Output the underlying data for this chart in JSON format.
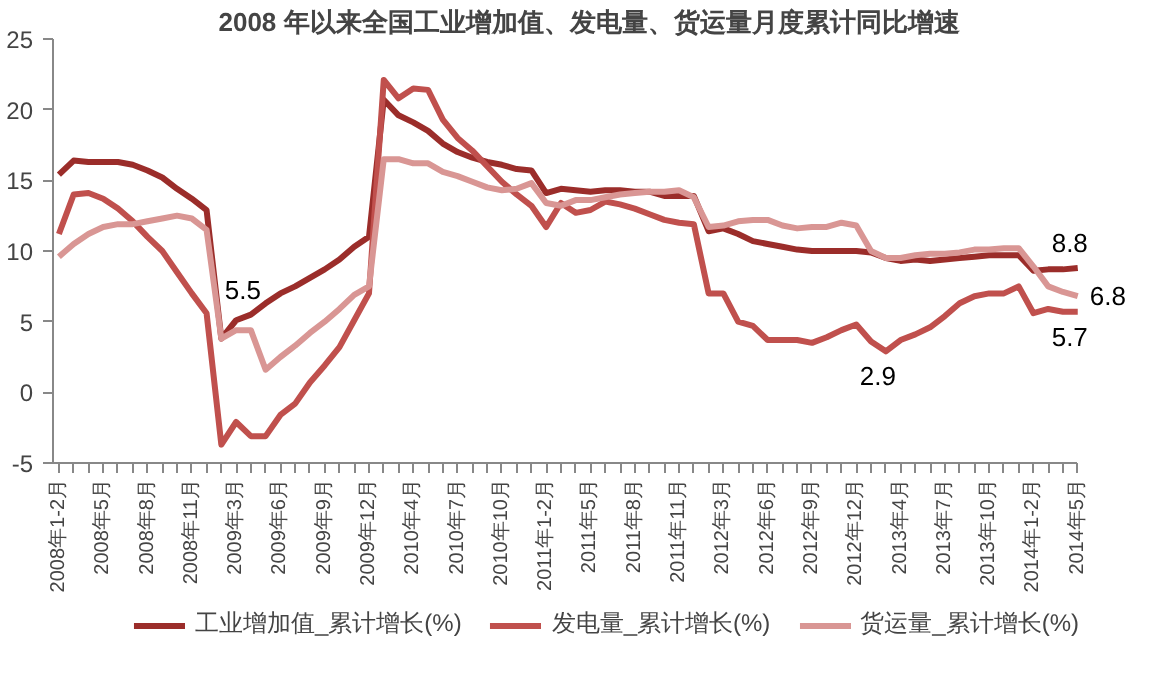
{
  "chart_data": {
    "type": "line",
    "title": "2008 年以来全国工业增加值、发电量、货运量月度累计同比增速",
    "categories": [
      "2008年1-2月",
      null,
      null,
      "2008年5月",
      null,
      null,
      "2008年8月",
      null,
      null,
      "2008年11月",
      null,
      null,
      "2009年3月",
      null,
      null,
      "2009年6月",
      null,
      null,
      "2009年9月",
      null,
      null,
      "2009年12月",
      null,
      null,
      "2010年4月",
      null,
      null,
      "2010年7月",
      null,
      null,
      "2010年10月",
      null,
      null,
      "2011年1-2月",
      null,
      null,
      "2011年5月",
      null,
      null,
      "2011年8月",
      null,
      null,
      "2011年11月",
      null,
      null,
      "2012年3月",
      null,
      null,
      "2012年6月",
      null,
      null,
      "2012年9月",
      null,
      null,
      "2012年12月",
      null,
      null,
      "2013年4月",
      null,
      null,
      "2013年7月",
      null,
      null,
      "2013年10月",
      null,
      null,
      "2014年1-2月",
      null,
      null,
      "2014年5月"
    ],
    "series": [
      {
        "name": "工业增加值_累计增长(%)",
        "color": "#9b2d2a",
        "values": [
          15.4,
          16.4,
          16.3,
          16.3,
          16.3,
          16.1,
          15.7,
          15.2,
          14.4,
          13.7,
          12.9,
          3.8,
          5.1,
          5.5,
          6.3,
          7.0,
          7.5,
          8.1,
          8.7,
          9.4,
          10.3,
          11.0,
          20.7,
          19.6,
          19.1,
          18.5,
          17.6,
          17.0,
          16.6,
          16.3,
          16.1,
          15.8,
          15.7,
          14.1,
          14.4,
          14.3,
          14.2,
          14.3,
          14.3,
          14.2,
          14.2,
          13.9,
          13.9,
          13.9,
          11.4,
          11.6,
          11.2,
          10.7,
          10.5,
          10.3,
          10.1,
          10.0,
          10.0,
          10.0,
          10.0,
          9.9,
          9.5,
          9.3,
          9.4,
          9.3,
          9.4,
          9.5,
          9.6,
          9.7,
          9.7,
          9.7,
          8.6,
          8.7,
          8.7,
          8.8
        ],
        "value_labels": [
          null,
          null,
          null,
          null,
          null,
          null,
          null,
          null,
          null,
          null,
          null,
          null,
          null,
          "5.5",
          null,
          null,
          null,
          null,
          null,
          null,
          null,
          null,
          null,
          null,
          null,
          null,
          null,
          null,
          null,
          null,
          null,
          null,
          null,
          null,
          null,
          null,
          null,
          null,
          null,
          null,
          null,
          null,
          null,
          null,
          null,
          null,
          null,
          null,
          null,
          null,
          null,
          null,
          null,
          null,
          null,
          null,
          null,
          null,
          null,
          null,
          null,
          null,
          null,
          null,
          null,
          null,
          null,
          null,
          null,
          "8.8"
        ]
      },
      {
        "name": "发电量_累计增长(%)",
        "color": "#c0504d",
        "values": [
          11.2,
          14.0,
          14.1,
          13.7,
          13.0,
          12.1,
          11.0,
          10.0,
          8.5,
          7.0,
          5.6,
          -3.7,
          -2.1,
          -3.1,
          -3.1,
          -1.6,
          -0.8,
          0.7,
          1.9,
          3.2,
          5.1,
          7.0,
          22.1,
          20.8,
          21.5,
          21.4,
          19.3,
          18.0,
          17.1,
          16.0,
          14.9,
          14.0,
          13.2,
          11.7,
          13.4,
          12.7,
          12.9,
          13.5,
          13.3,
          13.0,
          12.6,
          12.2,
          12.0,
          11.9,
          7.0,
          7.0,
          5.0,
          4.7,
          3.7,
          3.7,
          3.7,
          3.5,
          3.9,
          4.4,
          4.8,
          3.6,
          2.9,
          3.7,
          4.1,
          4.6,
          5.4,
          6.3,
          6.8,
          7.0,
          7.0,
          7.5,
          5.6,
          5.9,
          5.7,
          5.7
        ],
        "value_labels": [
          null,
          null,
          null,
          null,
          null,
          null,
          null,
          null,
          null,
          null,
          null,
          null,
          null,
          null,
          null,
          null,
          null,
          null,
          null,
          null,
          null,
          null,
          null,
          null,
          null,
          null,
          null,
          null,
          null,
          null,
          null,
          null,
          null,
          null,
          null,
          null,
          null,
          null,
          null,
          null,
          null,
          null,
          null,
          null,
          null,
          null,
          null,
          null,
          null,
          null,
          null,
          null,
          null,
          null,
          null,
          null,
          "2.9",
          null,
          null,
          null,
          null,
          null,
          null,
          null,
          null,
          null,
          null,
          null,
          null,
          "5.7"
        ]
      },
      {
        "name": "货运量_累计增长(%)",
        "color": "#d99694",
        "values": [
          9.6,
          10.5,
          11.2,
          11.7,
          11.9,
          11.9,
          12.1,
          12.3,
          12.5,
          12.3,
          11.5,
          3.8,
          4.4,
          4.4,
          1.6,
          2.5,
          3.3,
          4.2,
          5.0,
          5.9,
          6.9,
          7.5,
          16.5,
          16.5,
          16.2,
          16.2,
          15.6,
          15.3,
          14.9,
          14.5,
          14.3,
          14.4,
          14.8,
          13.4,
          13.2,
          13.6,
          13.6,
          13.8,
          14.0,
          14.1,
          14.2,
          14.2,
          14.3,
          13.8,
          11.7,
          11.8,
          12.1,
          12.2,
          12.2,
          11.8,
          11.6,
          11.7,
          11.7,
          12.0,
          11.8,
          10.0,
          9.5,
          9.5,
          9.7,
          9.8,
          9.8,
          9.9,
          10.1,
          10.1,
          10.2,
          10.2,
          8.9,
          7.5,
          7.1,
          6.8
        ],
        "value_labels": [
          null,
          null,
          null,
          null,
          null,
          null,
          null,
          null,
          null,
          null,
          null,
          null,
          null,
          null,
          null,
          null,
          null,
          null,
          null,
          null,
          null,
          null,
          null,
          null,
          null,
          null,
          null,
          null,
          null,
          null,
          null,
          null,
          null,
          null,
          null,
          null,
          null,
          null,
          null,
          null,
          null,
          null,
          null,
          null,
          null,
          null,
          null,
          null,
          null,
          null,
          null,
          null,
          null,
          null,
          null,
          null,
          null,
          null,
          null,
          null,
          null,
          null,
          null,
          null,
          null,
          null,
          null,
          null,
          null,
          "6.8"
        ]
      }
    ],
    "ylim": [
      -5,
      25
    ],
    "yticks": [
      -5,
      0,
      5,
      10,
      15,
      20,
      25
    ],
    "grid": false,
    "legend": "bottom",
    "marker": "none",
    "line_style": "solid"
  }
}
